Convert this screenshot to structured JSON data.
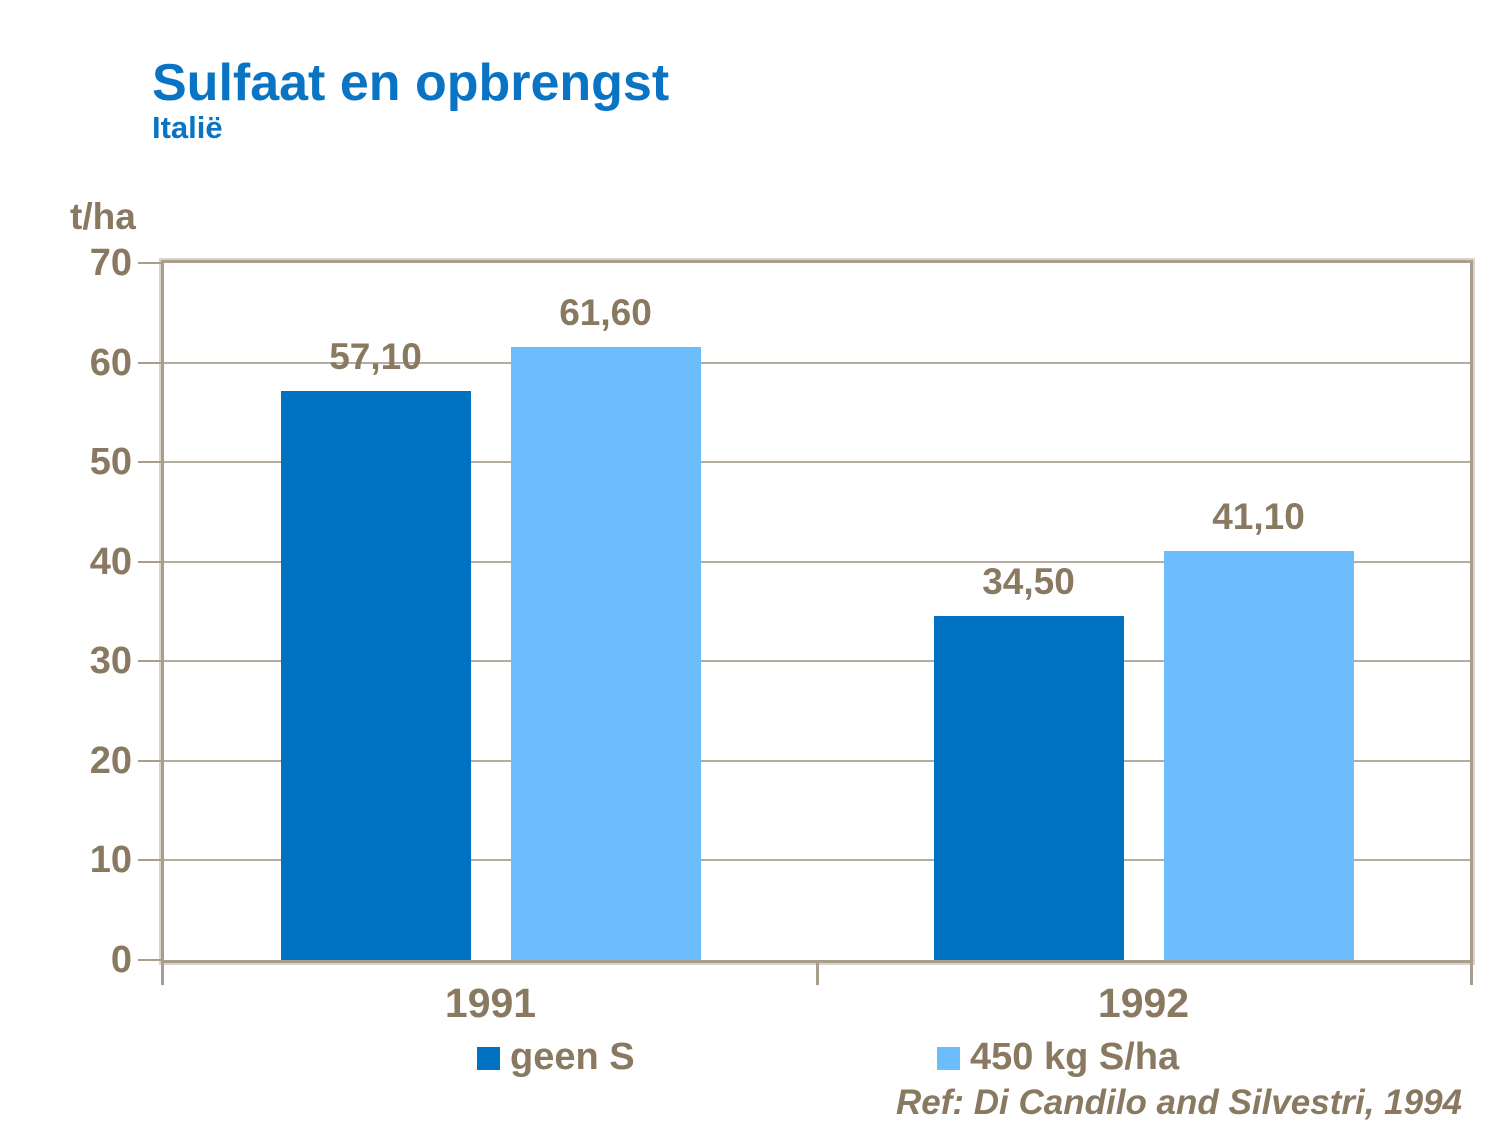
{
  "palette": {
    "title_blue": "#0a74c4",
    "axis_brown": "#8a7961",
    "frame_brown": "#a99e8e",
    "grid_brown": "#b6ac9e",
    "background": "#ffffff"
  },
  "chart_data": {
    "type": "bar",
    "title": "Sulfaat en opbrengst",
    "subtitle": "Italië",
    "unit_label": "t/ha",
    "categories": [
      "1991",
      "1992"
    ],
    "series": [
      {
        "name": "geen S",
        "color": "#0072c2",
        "values": [
          57.1,
          34.5
        ],
        "value_labels": [
          "57,10",
          "34,50"
        ]
      },
      {
        "name": "450 kg S/ha",
        "color": "#6bbdfc",
        "values": [
          61.6,
          41.1
        ],
        "value_labels": [
          "61,60",
          "41,10"
        ]
      }
    ],
    "ylim": [
      0,
      70
    ],
    "yticks": [
      0,
      10,
      20,
      30,
      40,
      50,
      60,
      70
    ],
    "grid": true,
    "legend_position": "bottom",
    "reference": "Ref: Di Candilo and Silvestri, 1994"
  }
}
